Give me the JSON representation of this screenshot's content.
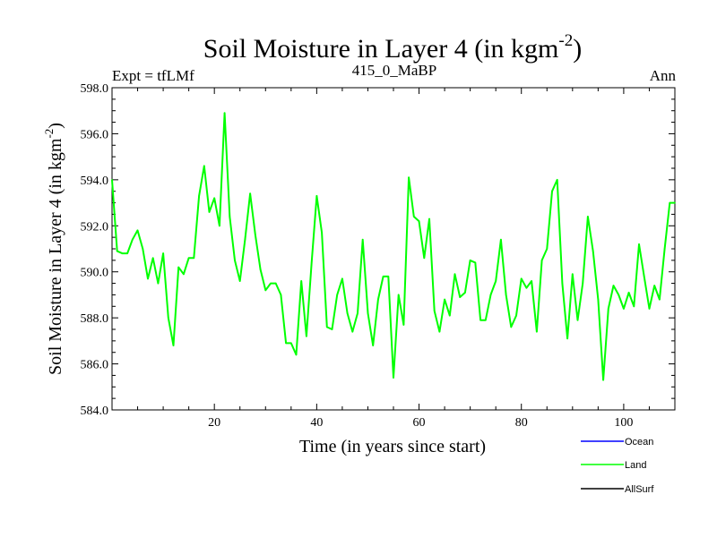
{
  "chart_data": {
    "type": "line",
    "title": "Soil Moisture in Layer 4 (in kgm",
    "title_superscript": "-2",
    "title_close": ")",
    "subtitle_left": "Expt = tfLMf",
    "subtitle_center": "415_0_MaBP",
    "subtitle_right": "Ann",
    "xlabel": "Time (in years since start)",
    "ylabel": "Soil Moisture in Layer 4 (in kgm",
    "ylabel_superscript": "-2",
    "ylabel_close": ")",
    "xlim": [
      0,
      110
    ],
    "ylim": [
      584.0,
      598.0
    ],
    "x_ticks": [
      20,
      40,
      60,
      80,
      100
    ],
    "x_tick_labels": [
      "20",
      "40",
      "60",
      "80",
      "100"
    ],
    "y_ticks": [
      584,
      586,
      588,
      590,
      592,
      594,
      596,
      598
    ],
    "y_tick_labels": [
      "584.0",
      "586.0",
      "588.0",
      "590.0",
      "592.0",
      "594.0",
      "596.0",
      "598.0"
    ],
    "legend_position": "bottom-right",
    "legend": [
      {
        "name": "Ocean",
        "color": "#0000ff"
      },
      {
        "name": "Land",
        "color": "#00ff00"
      },
      {
        "name": "AllSurf",
        "color": "#000000"
      }
    ],
    "series": [
      {
        "name": "Land",
        "color": "#00ff00",
        "x": [
          0,
          1,
          2,
          3,
          4,
          5,
          6,
          7,
          8,
          9,
          10,
          11,
          12,
          13,
          14,
          15,
          16,
          17,
          18,
          19,
          20,
          21,
          22,
          23,
          24,
          25,
          26,
          27,
          28,
          29,
          30,
          31,
          32,
          33,
          34,
          35,
          36,
          37,
          38,
          39,
          40,
          41,
          42,
          43,
          44,
          45,
          46,
          47,
          48,
          49,
          50,
          51,
          52,
          53,
          54,
          55,
          56,
          57,
          58,
          59,
          60,
          61,
          62,
          63,
          64,
          65,
          66,
          67,
          68,
          69,
          70,
          71,
          72,
          73,
          74,
          75,
          76,
          77,
          78,
          79,
          80,
          81,
          82,
          83,
          84,
          85,
          86,
          87,
          88,
          89,
          90,
          91,
          92,
          93,
          94,
          95,
          96,
          97,
          98,
          99,
          100,
          101,
          102,
          103,
          104,
          105,
          106,
          107,
          108,
          109,
          110
        ],
        "values": [
          594.0,
          590.9,
          590.8,
          590.8,
          591.4,
          591.8,
          591.0,
          589.7,
          590.6,
          589.5,
          590.8,
          588.0,
          586.8,
          590.2,
          589.9,
          590.6,
          590.6,
          593.3,
          594.6,
          592.6,
          593.2,
          592.0,
          596.9,
          592.4,
          590.5,
          589.6,
          591.4,
          593.4,
          591.6,
          590.1,
          589.2,
          589.5,
          589.5,
          589.0,
          586.9,
          586.9,
          586.4,
          589.6,
          587.2,
          590.4,
          593.3,
          591.7,
          587.6,
          587.5,
          589.0,
          589.7,
          588.2,
          587.4,
          588.2,
          591.4,
          588.2,
          586.8,
          588.8,
          589.8,
          589.8,
          585.4,
          589.0,
          587.7,
          594.1,
          592.4,
          592.2,
          590.6,
          592.3,
          588.3,
          587.4,
          588.8,
          588.1,
          589.9,
          588.9,
          589.1,
          590.5,
          590.4,
          587.9,
          587.9,
          589.0,
          589.6,
          591.4,
          589.0,
          587.6,
          588.1,
          589.7,
          589.3,
          589.6,
          587.4,
          590.5,
          591.0,
          593.5,
          594.0,
          589.5,
          587.1,
          589.9,
          587.9,
          589.5,
          592.4,
          590.9,
          588.8,
          585.3,
          588.4,
          589.4,
          589.0,
          588.4,
          589.1,
          588.5,
          591.2,
          589.8,
          588.4,
          589.4,
          588.8,
          591.0,
          593.0,
          593.0
        ]
      }
    ]
  }
}
